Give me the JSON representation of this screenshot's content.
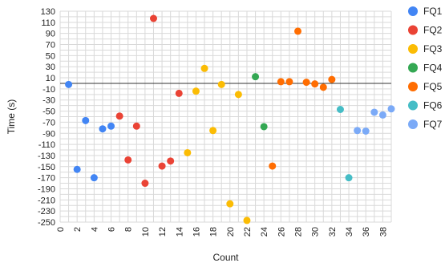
{
  "chart_data": {
    "type": "scatter",
    "xlabel": "Count",
    "ylabel": "Time (s)",
    "xlim": [
      0,
      39
    ],
    "ylim": [
      -250,
      130
    ],
    "x_ticks": [
      0,
      2,
      4,
      6,
      8,
      10,
      12,
      14,
      16,
      18,
      20,
      22,
      24,
      26,
      28,
      30,
      32,
      34,
      36,
      38
    ],
    "y_ticks": [
      130,
      110,
      90,
      70,
      50,
      30,
      10,
      -10,
      -30,
      -50,
      -70,
      -90,
      -110,
      -130,
      -150,
      -170,
      -190,
      -210,
      -230,
      -250
    ],
    "grid": true,
    "legend_position": "right",
    "series": [
      {
        "name": "FQ1",
        "color": "#4285F4",
        "points": [
          [
            1,
            -2
          ],
          [
            2,
            -155
          ],
          [
            3,
            -67
          ],
          [
            4,
            -170
          ],
          [
            5,
            -82
          ],
          [
            6,
            -77
          ]
        ]
      },
      {
        "name": "FQ2",
        "color": "#EA4335",
        "points": [
          [
            7,
            -59
          ],
          [
            8,
            -138
          ],
          [
            9,
            -77
          ],
          [
            10,
            -180
          ],
          [
            11,
            117
          ],
          [
            12,
            -149
          ],
          [
            13,
            -140
          ],
          [
            14,
            -18
          ]
        ]
      },
      {
        "name": "FQ3",
        "color": "#FBBC04",
        "points": [
          [
            15,
            -125
          ],
          [
            16,
            -14
          ],
          [
            17,
            27
          ],
          [
            18,
            -85
          ],
          [
            19,
            -2
          ],
          [
            20,
            -217
          ],
          [
            21,
            -20
          ],
          [
            22,
            -247
          ]
        ]
      },
      {
        "name": "FQ4",
        "color": "#34A853",
        "points": [
          [
            23,
            12
          ],
          [
            24,
            -78
          ]
        ]
      },
      {
        "name": "FQ5",
        "color": "#FF6D01",
        "points": [
          [
            25,
            -149
          ],
          [
            26,
            3
          ],
          [
            27,
            3
          ],
          [
            28,
            94
          ],
          [
            29,
            2
          ],
          [
            30,
            -1
          ],
          [
            31,
            -7
          ],
          [
            32,
            7
          ]
        ]
      },
      {
        "name": "FQ6",
        "color": "#46BDC6",
        "points": [
          [
            33,
            -47
          ],
          [
            34,
            -170
          ]
        ]
      },
      {
        "name": "FQ7",
        "color": "#7BAAF7",
        "points": [
          [
            35,
            -85
          ],
          [
            36,
            -86
          ],
          [
            37,
            -52
          ],
          [
            38,
            -57
          ],
          [
            39,
            -46
          ]
        ]
      }
    ]
  }
}
